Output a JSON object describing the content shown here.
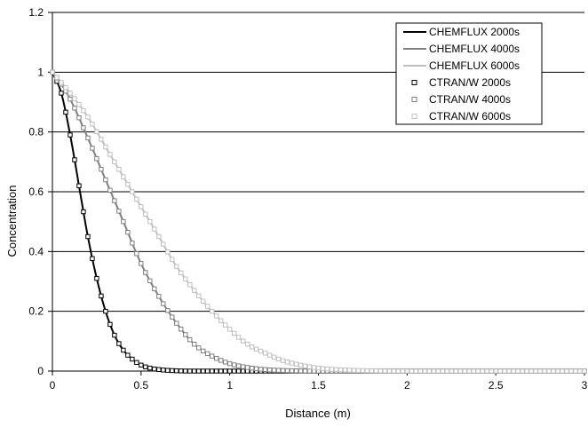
{
  "chart_data": {
    "type": "line",
    "title": "",
    "xlabel": "Distance (m)",
    "ylabel": "Concentration",
    "xlim": [
      0,
      3
    ],
    "ylim": [
      0,
      1.2
    ],
    "xticks": [
      "0",
      "0.5",
      "1",
      "1.5",
      "2",
      "2.5",
      "3"
    ],
    "yticks": [
      "0",
      "0.2",
      "0.4",
      "0.6",
      "0.8",
      "1",
      "1.2"
    ],
    "grid": "horizontal",
    "legend_position": "top-right",
    "series": [
      {
        "name": "CHEMFLUX 2000s",
        "style": "line",
        "color": "#000000",
        "x": [
          0,
          0.05,
          0.1,
          0.15,
          0.2,
          0.25,
          0.3,
          0.35,
          0.4,
          0.45,
          0.5,
          0.55,
          0.6,
          0.7,
          0.8,
          0.9,
          1.0,
          1.2,
          1.5,
          2.0,
          2.5,
          3.0
        ],
        "y": [
          1.0,
          0.93,
          0.79,
          0.62,
          0.45,
          0.31,
          0.2,
          0.12,
          0.07,
          0.04,
          0.02,
          0.01,
          0.005,
          0.001,
          0,
          0,
          0,
          0,
          0,
          0,
          0,
          0
        ]
      },
      {
        "name": "CHEMFLUX 4000s",
        "style": "line",
        "color": "#808080",
        "x": [
          0,
          0.05,
          0.1,
          0.2,
          0.3,
          0.4,
          0.5,
          0.6,
          0.7,
          0.8,
          0.9,
          1.0,
          1.1,
          1.2,
          1.3,
          1.5,
          2.0,
          2.5,
          3.0
        ],
        "y": [
          1.0,
          0.96,
          0.91,
          0.78,
          0.64,
          0.5,
          0.36,
          0.25,
          0.16,
          0.09,
          0.05,
          0.025,
          0.012,
          0.005,
          0.002,
          0,
          0,
          0,
          0
        ]
      },
      {
        "name": "CHEMFLUX 6000s",
        "style": "line",
        "color": "#c0c0c0",
        "x": [
          0,
          0.1,
          0.2,
          0.3,
          0.4,
          0.5,
          0.6,
          0.7,
          0.8,
          0.9,
          1.0,
          1.1,
          1.2,
          1.3,
          1.4,
          1.5,
          1.6,
          1.8,
          2.0,
          2.5,
          3.0
        ],
        "y": [
          1.0,
          0.93,
          0.85,
          0.75,
          0.65,
          0.55,
          0.45,
          0.35,
          0.27,
          0.2,
          0.14,
          0.09,
          0.06,
          0.035,
          0.02,
          0.01,
          0.005,
          0.001,
          0,
          0,
          0
        ]
      },
      {
        "name": "CTRAN/W 2000s",
        "style": "marker",
        "color": "#000000",
        "from": "CHEMFLUX 2000s"
      },
      {
        "name": "CTRAN/W 4000s",
        "style": "marker",
        "color": "#808080",
        "from": "CHEMFLUX 4000s"
      },
      {
        "name": "CTRAN/W 6000s",
        "style": "marker",
        "color": "#c0c0c0",
        "from": "CHEMFLUX 6000s"
      }
    ]
  }
}
